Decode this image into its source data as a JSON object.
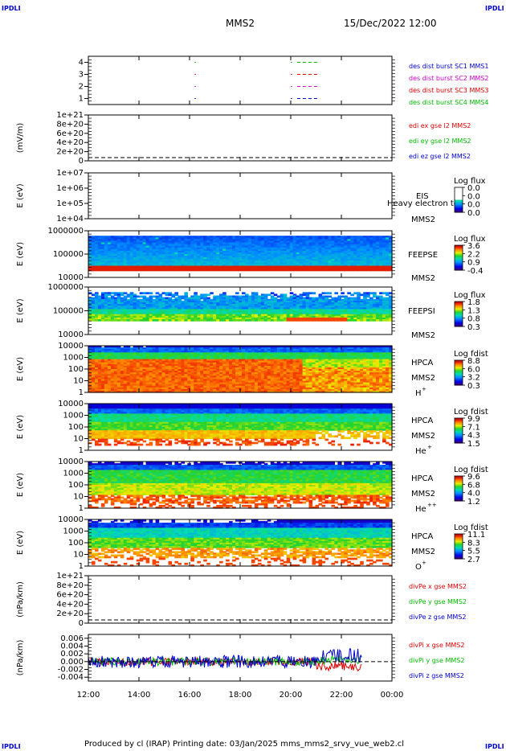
{
  "header": {
    "corner_left_top": "IPDLI",
    "corner_right_top": "IPDLI",
    "corner_left_bottom": "IPDLI",
    "corner_right_bottom": "IPDLI",
    "spacecraft": "MMS2",
    "datetime": "15/Dec/2022 12:00"
  },
  "footer": {
    "text": "Produced by cl (IRAP)   Printing date: 03/Jan/2025   mms_mms2_srvy_vue_web2.cl"
  },
  "colors": {
    "blue": "#0000cc",
    "magenta": "#cc00cc",
    "red": "#dd0000",
    "green": "#00bb00"
  },
  "chart_data": {
    "type": "stacked-panels",
    "time_axis": {
      "ticks": [
        "12:00",
        "14:00",
        "16:00",
        "18:00",
        "20:00",
        "22:00",
        "00:00"
      ],
      "range": [
        "2022-12-15T12:00",
        "2022-12-16T00:00"
      ]
    },
    "panels": [
      {
        "id": "burst",
        "kind": "line",
        "ylabel": "",
        "yticks": [
          "4",
          "3",
          "2",
          "1"
        ],
        "ylim": [
          0.5,
          4.5
        ],
        "series": [
          {
            "name": "des dist burst SC1 MMS1",
            "color": "#0000cc",
            "y": 1,
            "segments": [
              [
                16.2,
                16.25
              ],
              [
                20.0,
                20.05
              ],
              [
                20.25,
                21.05
              ]
            ]
          },
          {
            "name": "des dist burst SC2 MMS2",
            "color": "#cc00cc",
            "y": 2,
            "segments": [
              [
                16.2,
                16.25
              ],
              [
                20.0,
                20.05
              ],
              [
                20.25,
                21.05
              ]
            ]
          },
          {
            "name": "des dist burst SC3 MMS3",
            "color": "#dd0000",
            "y": 3,
            "segments": [
              [
                16.2,
                16.25
              ],
              [
                20.0,
                20.05
              ],
              [
                20.25,
                21.05
              ]
            ]
          },
          {
            "name": "des dist burst SC4 MMS4",
            "color": "#00bb00",
            "y": 4,
            "segments": [
              [
                16.2,
                16.25
              ],
              [
                20.0,
                20.05
              ],
              [
                20.25,
                21.05
              ]
            ]
          }
        ]
      },
      {
        "id": "edi",
        "kind": "line",
        "ylabel": "(mV/m)",
        "yticks": [
          "1e+21",
          "8e+20",
          "6e+20",
          "4e+20",
          "2e+20",
          "0"
        ],
        "ylim": [
          0,
          1e+21
        ],
        "zero_line": true,
        "series": [
          {
            "name": "edi ex gse l2 MMS2",
            "color": "#dd0000"
          },
          {
            "name": "edi ey gse l2 MMS2",
            "color": "#00bb00"
          },
          {
            "name": "edi ez gse l2 MMS2",
            "color": "#0000cc"
          }
        ]
      },
      {
        "id": "eis",
        "kind": "spectrogram",
        "ylabel": "E (eV)",
        "yticks": [
          "1e+07",
          "1e+06",
          "1e+05",
          "1e+04"
        ],
        "log": true,
        "instrument": [
          "EIS",
          "MMS2"
        ],
        "overlay_text": "Heavy electron to",
        "colorbar": {
          "title": "Log flux",
          "ticks": [
            "0.0",
            "0.0",
            "0.0",
            "0.0"
          ]
        }
      },
      {
        "id": "feeps_e",
        "kind": "spectrogram",
        "ylabel": "E (eV)",
        "yticks": [
          "1000000",
          "100000",
          "10000"
        ],
        "log": true,
        "instrument": [
          "FEEPSE",
          "MMS2"
        ],
        "colorbar": {
          "title": "Log flux",
          "ticks": [
            "3.6",
            "2.2",
            "0.9",
            "-0.4"
          ]
        }
      },
      {
        "id": "feeps_i",
        "kind": "spectrogram",
        "ylabel": "E (eV)",
        "yticks": [
          "1000000",
          "100000",
          "10000"
        ],
        "log": true,
        "instrument": [
          "FEEPSI",
          "MMS2"
        ],
        "colorbar": {
          "title": "Log flux",
          "ticks": [
            "1.8",
            "1.3",
            "0.8",
            "0.3"
          ]
        }
      },
      {
        "id": "hpca_h",
        "kind": "spectrogram",
        "ylabel": "E (eV)",
        "yticks": [
          "10000",
          "1000",
          "100",
          "10",
          "1"
        ],
        "log": true,
        "instrument": [
          "HPCA",
          "MMS2"
        ],
        "species": "H",
        "charge": "+",
        "colorbar": {
          "title": "Log fdist",
          "ticks": [
            "8.8",
            "6.0",
            "3.2",
            "0.3"
          ]
        }
      },
      {
        "id": "hpca_he1",
        "kind": "spectrogram",
        "ylabel": "E (eV)",
        "yticks": [
          "10000",
          "1000",
          "100",
          "10",
          "1"
        ],
        "log": true,
        "instrument": [
          "HPCA",
          "MMS2"
        ],
        "species": "He",
        "charge": "+",
        "colorbar": {
          "title": "Log fdist",
          "ticks": [
            "9.9",
            "7.1",
            "4.3",
            "1.5"
          ]
        }
      },
      {
        "id": "hpca_he2",
        "kind": "spectrogram",
        "ylabel": "E (eV)",
        "yticks": [
          "10000",
          "1000",
          "100",
          "10",
          "1"
        ],
        "log": true,
        "instrument": [
          "HPCA",
          "MMS2"
        ],
        "species": "He",
        "charge": "++",
        "colorbar": {
          "title": "Log fdist",
          "ticks": [
            "9.6",
            "6.8",
            "4.0",
            "1.2"
          ]
        }
      },
      {
        "id": "hpca_o",
        "kind": "spectrogram",
        "ylabel": "E (eV)",
        "yticks": [
          "10000",
          "1000",
          "100",
          "10",
          "1"
        ],
        "log": true,
        "instrument": [
          "HPCA",
          "MMS2"
        ],
        "species": "O",
        "charge": "+",
        "colorbar": {
          "title": "Log fdist",
          "ticks": [
            "11.1",
            "8.3",
            "5.5",
            "2.7"
          ]
        }
      },
      {
        "id": "divpe",
        "kind": "line",
        "ylabel": "(nPa/km)",
        "yticks": [
          "1e+21",
          "8e+20",
          "6e+20",
          "4e+20",
          "2e+20",
          "0"
        ],
        "ylim": [
          0,
          1e+21
        ],
        "zero_line": true,
        "series": [
          {
            "name": "divPe x gse MMS2",
            "color": "#dd0000"
          },
          {
            "name": "divPe y gse MMS2",
            "color": "#00bb00"
          },
          {
            "name": "divPe z gse MMS2",
            "color": "#0000cc"
          }
        ]
      },
      {
        "id": "divpi",
        "kind": "line",
        "ylabel": "(nPa/km)",
        "yticks": [
          "0.006",
          "0.004",
          "0.002",
          "0.000",
          "-0.002",
          "-0.004"
        ],
        "ylim": [
          -0.005,
          0.007
        ],
        "zero_line": true,
        "series": [
          {
            "name": "divPi x gse MMS2",
            "color": "#dd0000"
          },
          {
            "name": "divPi y gse MMS2",
            "color": "#00bb00"
          },
          {
            "name": "divPi z gse MMS2",
            "color": "#0000cc"
          }
        ]
      }
    ]
  }
}
